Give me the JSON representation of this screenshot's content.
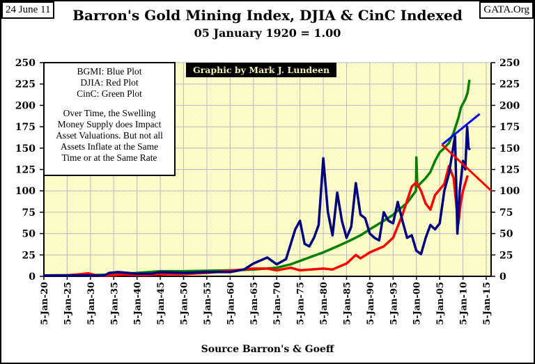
{
  "header": {
    "date": "24 June 11",
    "site": "GATA.Org",
    "credit": "Graphic by Mark J. Lundeen",
    "source": "Source Barron's & Goeff"
  },
  "legend": {
    "lines": [
      "BGMI: Blue Plot",
      "DJIA: Red Plot",
      "CinC: Green Plot"
    ],
    "note": [
      "Over Time, the Swelling",
      "Money Supply does Impact",
      "Asset Valuations.  But not all",
      "Assets Inflate at the Same",
      "Time or at the Same Rate"
    ]
  },
  "chart_data": {
    "type": "line",
    "title": "Barron's Gold Mining Index, DJIA & CinC Indexed",
    "subtitle": "05 January 1920 = 1.00",
    "xlabel": "",
    "ylabel": "",
    "xlim": [
      1920,
      2016.1
    ],
    "ylim": [
      0,
      250
    ],
    "yticks": [
      0,
      25,
      50,
      75,
      100,
      125,
      150,
      175,
      200,
      225,
      250
    ],
    "xticks": [
      1920,
      1925,
      1930,
      1935,
      1940,
      1945,
      1950,
      1955,
      1960,
      1965,
      1970,
      1975,
      1980,
      1985,
      1990,
      1995,
      2000,
      2005,
      2010,
      2015
    ],
    "xtick_labels": [
      "5-Jan-20",
      "5-Jan-25",
      "5-Jan-30",
      "5-Jan-35",
      "5-Jan-40",
      "5-Jan-45",
      "5-Jan-50",
      "5-Jan-55",
      "5-Jan-60",
      "5-Jan-65",
      "5-Jan-70",
      "5-Jan-75",
      "5-Jan-80",
      "5-Jan-85",
      "5-Jan-90",
      "5-Jan-95",
      "5-Jan-00",
      "5-Jan-05",
      "5-Jan-10",
      "5-Jan-15"
    ],
    "grid": true,
    "series": [
      {
        "name": "CinC",
        "color": "#008000",
        "points": [
          [
            1920,
            1
          ],
          [
            1930,
            1.5
          ],
          [
            1935,
            2
          ],
          [
            1940,
            4
          ],
          [
            1945,
            6
          ],
          [
            1950,
            6
          ],
          [
            1955,
            6.5
          ],
          [
            1960,
            7
          ],
          [
            1965,
            8
          ],
          [
            1970,
            10
          ],
          [
            1973,
            14
          ],
          [
            1975,
            18
          ],
          [
            1978,
            24
          ],
          [
            1980,
            28
          ],
          [
            1983,
            35
          ],
          [
            1985,
            40
          ],
          [
            1988,
            48
          ],
          [
            1990,
            55
          ],
          [
            1993,
            65
          ],
          [
            1995,
            72
          ],
          [
            1998,
            86
          ],
          [
            1999.9,
            100
          ],
          [
            2000,
            139
          ],
          [
            2000.2,
            105
          ],
          [
            2002,
            115
          ],
          [
            2003,
            122
          ],
          [
            2004,
            135
          ],
          [
            2005,
            145
          ],
          [
            2006,
            150
          ],
          [
            2007,
            156
          ],
          [
            2008,
            168
          ],
          [
            2009,
            185
          ],
          [
            2009.6,
            198
          ],
          [
            2010.5,
            207
          ],
          [
            2011,
            215
          ],
          [
            2011.4,
            230
          ]
        ]
      },
      {
        "name": "DJIA",
        "color": "#ff0000",
        "points": [
          [
            1920,
            1
          ],
          [
            1925,
            1.2
          ],
          [
            1928,
            2.5
          ],
          [
            1929.5,
            3.5
          ],
          [
            1931,
            1.5
          ],
          [
            1932.5,
            0.5
          ],
          [
            1937,
            2
          ],
          [
            1942,
            1.5
          ],
          [
            1946,
            2.5
          ],
          [
            1950,
            2.5
          ],
          [
            1955,
            4
          ],
          [
            1960,
            6.5
          ],
          [
            1965,
            9
          ],
          [
            1968,
            9
          ],
          [
            1970,
            7
          ],
          [
            1973,
            10
          ],
          [
            1975,
            7
          ],
          [
            1980,
            9
          ],
          [
            1982,
            8
          ],
          [
            1985,
            15
          ],
          [
            1987,
            25
          ],
          [
            1988,
            21
          ],
          [
            1990,
            28
          ],
          [
            1993,
            35
          ],
          [
            1995,
            45
          ],
          [
            1997,
            72
          ],
          [
            1999,
            105
          ],
          [
            2000,
            110
          ],
          [
            2001,
            100
          ],
          [
            2002,
            85
          ],
          [
            2003,
            78
          ],
          [
            2004,
            95
          ],
          [
            2006,
            108
          ],
          [
            2007,
            129
          ],
          [
            2008,
            115
          ],
          [
            2009,
            61
          ],
          [
            2009.5,
            85
          ],
          [
            2010,
            100
          ],
          [
            2011,
            118
          ]
        ]
      },
      {
        "name": "BGMI",
        "color": "#000080",
        "points": [
          [
            1920,
            1
          ],
          [
            1933,
            1
          ],
          [
            1934,
            4
          ],
          [
            1936,
            5
          ],
          [
            1938,
            4
          ],
          [
            1940,
            3
          ],
          [
            1943,
            3
          ],
          [
            1945,
            5
          ],
          [
            1950,
            4
          ],
          [
            1955,
            5
          ],
          [
            1960,
            5
          ],
          [
            1963,
            8
          ],
          [
            1965,
            15
          ],
          [
            1968,
            22
          ],
          [
            1970,
            14
          ],
          [
            1972,
            20
          ],
          [
            1974,
            55
          ],
          [
            1975,
            65
          ],
          [
            1976,
            38
          ],
          [
            1977,
            35
          ],
          [
            1978,
            45
          ],
          [
            1979,
            60
          ],
          [
            1980,
            138
          ],
          [
            1981,
            75
          ],
          [
            1982,
            48
          ],
          [
            1983,
            98
          ],
          [
            1984,
            65
          ],
          [
            1985,
            45
          ],
          [
            1986,
            58
          ],
          [
            1987,
            109
          ],
          [
            1988,
            72
          ],
          [
            1989,
            68
          ],
          [
            1990,
            50
          ],
          [
            1991,
            45
          ],
          [
            1992,
            42
          ],
          [
            1993,
            75
          ],
          [
            1994,
            65
          ],
          [
            1995,
            62
          ],
          [
            1996,
            87
          ],
          [
            1997,
            65
          ],
          [
            1998,
            45
          ],
          [
            1999,
            48
          ],
          [
            2000,
            30
          ],
          [
            2001,
            26
          ],
          [
            2002,
            45
          ],
          [
            2003,
            60
          ],
          [
            2004,
            55
          ],
          [
            2005,
            62
          ],
          [
            2006,
            100
          ],
          [
            2007,
            120
          ],
          [
            2008.3,
            164
          ],
          [
            2008.8,
            50
          ],
          [
            2009.3,
            100
          ],
          [
            2010,
            135
          ],
          [
            2010.5,
            125
          ],
          [
            2010.9,
            175
          ],
          [
            2011.2,
            150
          ],
          [
            2011.5,
            148
          ]
        ]
      }
    ],
    "trendlines": [
      {
        "name": "BGMI trend",
        "color": "#0000ff",
        "from": [
          2005.5,
          154
        ],
        "to": [
          2013.6,
          190
        ]
      },
      {
        "name": "DJIA trend",
        "color": "#ff0000",
        "from": [
          2005.5,
          154
        ],
        "to": [
          2016.1,
          100
        ]
      }
    ]
  }
}
